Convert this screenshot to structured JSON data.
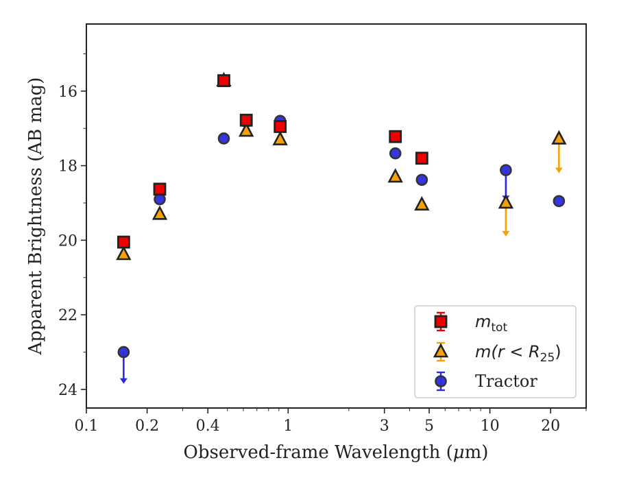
{
  "chart_data": {
    "type": "scatter",
    "xlabel_main": "Observed-frame Wavelength (",
    "xlabel_mu": "μ",
    "xlabel_tail": "m)",
    "ylabel": "Apparent Brightness (AB mag)",
    "xscale": "log",
    "xlim": [
      0.1,
      30
    ],
    "ylim": [
      24.5,
      14.2
    ],
    "yaxis_inverted": true,
    "xticks": [
      0.1,
      0.2,
      0.4,
      1,
      3,
      5,
      10,
      20
    ],
    "xtick_labels": [
      "0.1",
      "0.2",
      "0.4",
      "1",
      "3",
      "5",
      "10",
      "20"
    ],
    "yticks": [
      16,
      18,
      20,
      22,
      24
    ],
    "ytick_labels": [
      "16",
      "18",
      "20",
      "22",
      "24"
    ],
    "legend": {
      "position": "lower-right",
      "entries": [
        {
          "label_main": "m",
          "label_sub": "tot",
          "label_tail": ""
        },
        {
          "label_main": "m(r < R",
          "label_sub": "25",
          "label_tail": ")"
        },
        {
          "label_main": "Tractor",
          "label_sub": "",
          "label_tail": ""
        }
      ]
    },
    "series": [
      {
        "key": "mtot",
        "marker": "square",
        "color": "#ee0000",
        "edge": "#222222",
        "points": [
          {
            "x": 0.153,
            "y": 20.05
          },
          {
            "x": 0.231,
            "y": 18.63
          },
          {
            "x": 0.48,
            "y": 15.72
          },
          {
            "x": 0.62,
            "y": 16.78
          },
          {
            "x": 0.913,
            "y": 16.95
          },
          {
            "x": 3.4,
            "y": 17.22
          },
          {
            "x": 4.6,
            "y": 17.8
          }
        ]
      },
      {
        "key": "mr25",
        "marker": "triangle",
        "color": "#f5a20a",
        "edge": "#222222",
        "points": [
          {
            "x": 0.153,
            "y": 20.38
          },
          {
            "x": 0.231,
            "y": 19.3
          },
          {
            "x": 0.48,
            "y": 15.72
          },
          {
            "x": 0.62,
            "y": 17.07
          },
          {
            "x": 0.913,
            "y": 17.3
          },
          {
            "x": 3.4,
            "y": 18.3
          },
          {
            "x": 4.6,
            "y": 19.05
          },
          {
            "x": 12.0,
            "y": 19.0,
            "upper_limit": true,
            "arrow_to": 19.9
          },
          {
            "x": 22.0,
            "y": 17.28,
            "upper_limit": true,
            "arrow_to": 18.2
          }
        ]
      },
      {
        "key": "tractor",
        "marker": "circle",
        "color": "#2a2ae0",
        "edge": "#333333",
        "points": [
          {
            "x": 0.153,
            "y": 23.0,
            "upper_limit": true,
            "arrow_to": 23.85
          },
          {
            "x": 0.231,
            "y": 18.9
          },
          {
            "x": 0.48,
            "y": 17.27
          },
          {
            "x": 0.62,
            "y": 16.82
          },
          {
            "x": 0.913,
            "y": 16.8
          },
          {
            "x": 3.4,
            "y": 17.67
          },
          {
            "x": 4.6,
            "y": 18.38
          },
          {
            "x": 12.0,
            "y": 18.12,
            "upper_limit": true,
            "arrow_to": 18.95
          },
          {
            "x": 22.0,
            "y": 18.95
          }
        ]
      }
    ]
  }
}
